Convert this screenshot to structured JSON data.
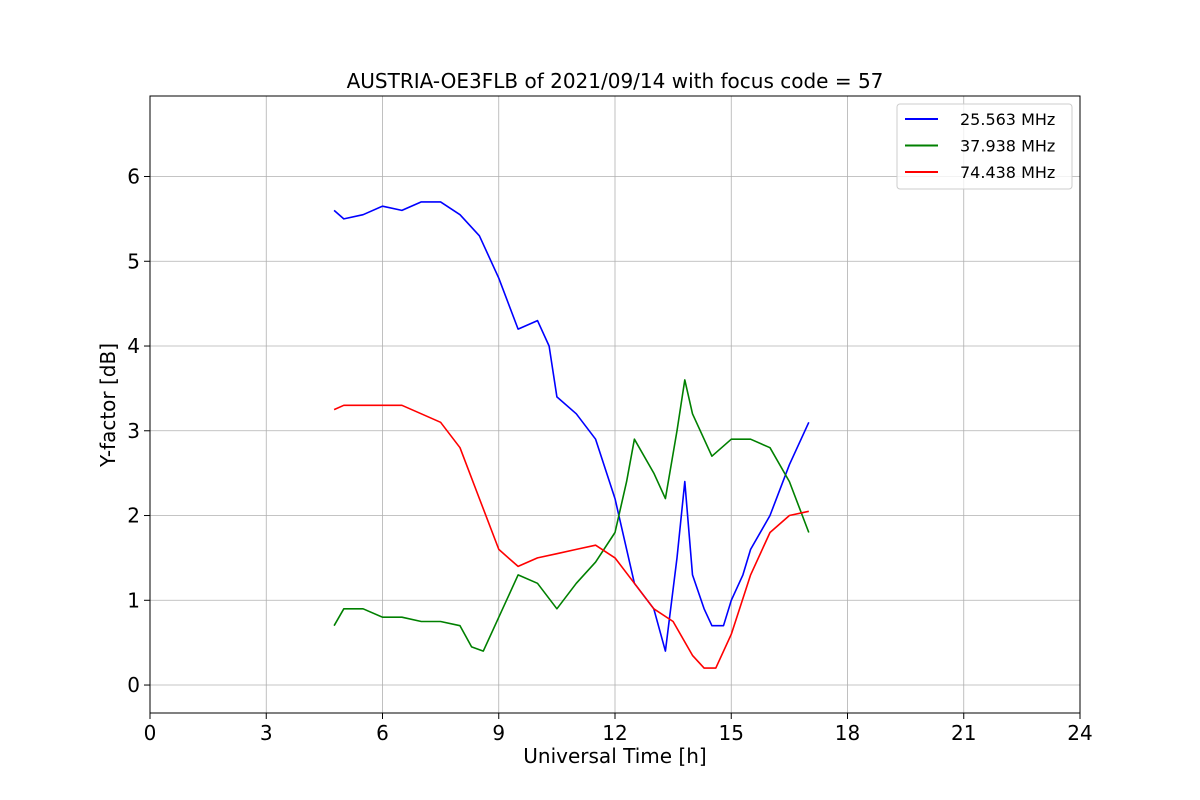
{
  "chart_data": {
    "type": "line",
    "title": "AUSTRIA-OE3FLB of 2021/09/14 with focus code = 57",
    "xlabel": "Universal Time [h]",
    "ylabel": "Y-factor [dB]",
    "xlim": [
      0,
      24
    ],
    "ylim": [
      -0.33,
      6.95
    ],
    "xticks": [
      "0",
      "3",
      "6",
      "9",
      "12",
      "15",
      "18",
      "21",
      "24"
    ],
    "yticks": [
      "0",
      "1",
      "2",
      "3",
      "4",
      "5",
      "6"
    ],
    "grid": true,
    "legend_position": "top-right",
    "series": [
      {
        "name": "25.563 MHz",
        "color": "#0000ff",
        "x": [
          4.75,
          5.0,
          5.5,
          6.0,
          6.5,
          7.0,
          7.5,
          8.0,
          8.5,
          9.0,
          9.5,
          10.0,
          10.3,
          10.5,
          11.0,
          11.5,
          12.0,
          12.5,
          13.0,
          13.3,
          13.6,
          13.8,
          14.0,
          14.3,
          14.5,
          14.8,
          15.0,
          15.3,
          15.5,
          16.0,
          16.5,
          17.0
        ],
        "y": [
          5.6,
          5.5,
          5.55,
          5.65,
          5.6,
          5.7,
          5.7,
          5.55,
          5.3,
          4.8,
          4.2,
          4.3,
          4.0,
          3.4,
          3.2,
          2.9,
          2.2,
          1.2,
          0.9,
          0.4,
          1.5,
          2.4,
          1.3,
          0.9,
          0.7,
          0.7,
          1.0,
          1.3,
          1.6,
          2.0,
          2.6,
          3.1
        ]
      },
      {
        "name": "37.938 MHz",
        "color": "#008000",
        "x": [
          4.75,
          5.0,
          5.5,
          6.0,
          6.5,
          7.0,
          7.5,
          8.0,
          8.3,
          8.6,
          9.0,
          9.3,
          9.5,
          10.0,
          10.5,
          11.0,
          11.5,
          12.0,
          12.3,
          12.5,
          13.0,
          13.3,
          13.6,
          13.8,
          14.0,
          14.5,
          15.0,
          15.5,
          16.0,
          16.5,
          17.0
        ],
        "y": [
          0.7,
          0.9,
          0.9,
          0.8,
          0.8,
          0.75,
          0.75,
          0.7,
          0.45,
          0.4,
          0.8,
          1.1,
          1.3,
          1.2,
          0.9,
          1.2,
          1.45,
          1.8,
          2.4,
          2.9,
          2.5,
          2.2,
          3.0,
          3.6,
          3.2,
          2.7,
          2.9,
          2.9,
          2.8,
          2.4,
          1.8
        ]
      },
      {
        "name": "74.438 MHz",
        "color": "#ff0000",
        "x": [
          4.75,
          5.0,
          5.5,
          6.0,
          6.5,
          7.0,
          7.5,
          8.0,
          8.5,
          9.0,
          9.5,
          10.0,
          10.5,
          11.0,
          11.5,
          12.0,
          12.5,
          13.0,
          13.5,
          14.0,
          14.3,
          14.6,
          15.0,
          15.5,
          16.0,
          16.5,
          17.0
        ],
        "y": [
          3.25,
          3.3,
          3.3,
          3.3,
          3.3,
          3.2,
          3.1,
          2.8,
          2.2,
          1.6,
          1.4,
          1.5,
          1.55,
          1.6,
          1.65,
          1.5,
          1.2,
          0.9,
          0.75,
          0.35,
          0.2,
          0.2,
          0.6,
          1.3,
          1.8,
          2.0,
          2.05
        ]
      }
    ]
  }
}
